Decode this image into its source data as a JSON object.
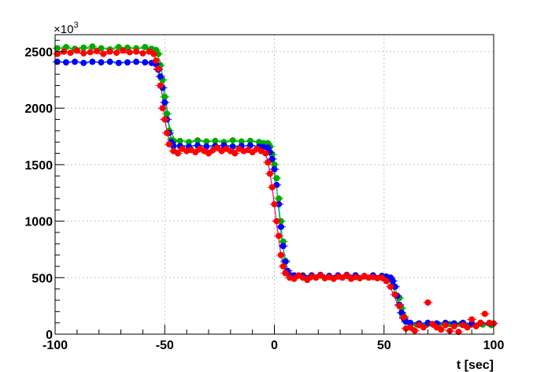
{
  "chart_data": {
    "type": "scatter",
    "title": "",
    "xlabel": "t [sec]",
    "ylabel": "",
    "y_multiplier": "×10",
    "y_multiplier_exp": "3",
    "xlim": [
      -100,
      100
    ],
    "ylim": [
      0,
      2650
    ],
    "x_ticks": [
      -100,
      -50,
      0,
      50,
      100
    ],
    "x_tick_labels": [
      "-100",
      "-50",
      "0",
      "50",
      "100"
    ],
    "y_ticks": [
      0,
      500,
      1000,
      1500,
      2000,
      2500
    ],
    "y_tick_labels": [
      "0",
      "500",
      "1000",
      "1500",
      "2000",
      "2500"
    ],
    "grid": true,
    "series": [
      {
        "color": "#00aa00",
        "fit_color": "#00aa00",
        "points": [
          [
            -99,
            2530
          ],
          [
            -95,
            2540
          ],
          [
            -91,
            2525
          ],
          [
            -87,
            2535
          ],
          [
            -83,
            2545
          ],
          [
            -79,
            2530
          ],
          [
            -75,
            2520
          ],
          [
            -71,
            2540
          ],
          [
            -67,
            2535
          ],
          [
            -63,
            2530
          ],
          [
            -59,
            2540
          ],
          [
            -56,
            2525
          ],
          [
            -54,
            2515
          ],
          [
            -53,
            2480
          ],
          [
            -52,
            2380
          ],
          [
            -51,
            2250
          ],
          [
            -50,
            2100
          ],
          [
            -49,
            1950
          ],
          [
            -48,
            1800
          ],
          [
            -47,
            1720
          ],
          [
            -46,
            1705
          ],
          [
            -43,
            1710
          ],
          [
            -39,
            1700
          ],
          [
            -35,
            1715
          ],
          [
            -31,
            1705
          ],
          [
            -27,
            1710
          ],
          [
            -23,
            1700
          ],
          [
            -19,
            1715
          ],
          [
            -15,
            1705
          ],
          [
            -11,
            1710
          ],
          [
            -7,
            1700
          ],
          [
            -5,
            1690
          ],
          [
            -3,
            1690
          ],
          [
            -2,
            1660
          ],
          [
            -1,
            1590
          ],
          [
            0,
            1500
          ],
          [
            1,
            1380
          ],
          [
            2,
            1200
          ],
          [
            3,
            1000
          ],
          [
            4,
            820
          ],
          [
            5,
            650
          ],
          [
            6,
            560
          ],
          [
            7,
            525
          ],
          [
            9,
            515
          ],
          [
            13,
            520
          ],
          [
            17,
            510
          ],
          [
            21,
            520
          ],
          [
            25,
            515
          ],
          [
            29,
            510
          ],
          [
            33,
            515
          ],
          [
            37,
            520
          ],
          [
            41,
            510
          ],
          [
            45,
            515
          ],
          [
            49,
            515
          ],
          [
            51,
            505
          ],
          [
            53,
            480
          ],
          [
            55,
            420
          ],
          [
            57,
            320
          ],
          [
            58,
            230
          ],
          [
            59,
            160
          ],
          [
            60,
            110
          ],
          [
            62,
            90
          ],
          [
            65,
            85
          ],
          [
            70,
            90
          ],
          [
            75,
            85
          ],
          [
            80,
            90
          ],
          [
            85,
            90
          ],
          [
            90,
            85
          ],
          [
            95,
            85
          ],
          [
            99,
            80
          ]
        ],
        "fit": [
          [
            -100,
            2530
          ],
          [
            -56,
            2530
          ],
          [
            -54,
            2510
          ],
          [
            -52,
            2400
          ],
          [
            -50,
            2150
          ],
          [
            -48,
            1850
          ],
          [
            -46,
            1740
          ],
          [
            -44,
            1710
          ],
          [
            -5,
            1705
          ],
          [
            -3,
            1680
          ],
          [
            -1,
            1550
          ],
          [
            1,
            1300
          ],
          [
            3,
            900
          ],
          [
            5,
            620
          ],
          [
            7,
            530
          ],
          [
            9,
            515
          ],
          [
            50,
            512
          ],
          [
            52,
            490
          ],
          [
            54,
            420
          ],
          [
            56,
            300
          ],
          [
            58,
            170
          ],
          [
            60,
            110
          ],
          [
            63,
            90
          ],
          [
            100,
            85
          ]
        ]
      },
      {
        "color": "#0000ff",
        "fit_color": "#00cccc",
        "points": [
          [
            -99,
            2410
          ],
          [
            -95,
            2405
          ],
          [
            -91,
            2410
          ],
          [
            -87,
            2400
          ],
          [
            -83,
            2410
          ],
          [
            -79,
            2405
          ],
          [
            -75,
            2410
          ],
          [
            -71,
            2400
          ],
          [
            -67,
            2405
          ],
          [
            -63,
            2410
          ],
          [
            -59,
            2405
          ],
          [
            -56,
            2400
          ],
          [
            -54,
            2390
          ],
          [
            -53,
            2340
          ],
          [
            -52,
            2280
          ],
          [
            -51,
            2180
          ],
          [
            -50,
            2050
          ],
          [
            -49,
            1900
          ],
          [
            -48,
            1780
          ],
          [
            -47,
            1700
          ],
          [
            -46,
            1665
          ],
          [
            -43,
            1665
          ],
          [
            -39,
            1660
          ],
          [
            -35,
            1670
          ],
          [
            -31,
            1660
          ],
          [
            -27,
            1665
          ],
          [
            -23,
            1670
          ],
          [
            -19,
            1660
          ],
          [
            -15,
            1665
          ],
          [
            -11,
            1670
          ],
          [
            -7,
            1660
          ],
          [
            -5,
            1655
          ],
          [
            -3,
            1650
          ],
          [
            -2,
            1610
          ],
          [
            -1,
            1550
          ],
          [
            0,
            1460
          ],
          [
            1,
            1320
          ],
          [
            2,
            1150
          ],
          [
            3,
            950
          ],
          [
            4,
            780
          ],
          [
            5,
            640
          ],
          [
            6,
            560
          ],
          [
            7,
            520
          ],
          [
            9,
            520
          ],
          [
            13,
            515
          ],
          [
            17,
            520
          ],
          [
            21,
            525
          ],
          [
            25,
            515
          ],
          [
            29,
            520
          ],
          [
            33,
            525
          ],
          [
            37,
            520
          ],
          [
            41,
            515
          ],
          [
            45,
            520
          ],
          [
            49,
            515
          ],
          [
            51,
            510
          ],
          [
            53,
            500
          ],
          [
            54,
            470
          ],
          [
            55,
            420
          ],
          [
            56,
            340
          ],
          [
            57,
            260
          ],
          [
            58,
            190
          ],
          [
            59,
            140
          ],
          [
            60,
            110
          ],
          [
            62,
            100
          ],
          [
            66,
            95
          ],
          [
            70,
            100
          ],
          [
            74,
            95
          ],
          [
            78,
            100
          ],
          [
            82,
            95
          ],
          [
            86,
            100
          ],
          [
            90,
            95
          ],
          [
            94,
            100
          ],
          [
            98,
            95
          ]
        ],
        "fit": [
          [
            -100,
            2410
          ],
          [
            -55,
            2405
          ],
          [
            -53,
            2360
          ],
          [
            -51,
            2200
          ],
          [
            -49,
            1920
          ],
          [
            -47,
            1720
          ],
          [
            -45,
            1670
          ],
          [
            -4,
            1665
          ],
          [
            -2,
            1620
          ],
          [
            0,
            1470
          ],
          [
            2,
            1150
          ],
          [
            4,
            780
          ],
          [
            6,
            560
          ],
          [
            8,
            520
          ],
          [
            51,
            515
          ],
          [
            53,
            500
          ],
          [
            55,
            420
          ],
          [
            57,
            270
          ],
          [
            59,
            150
          ],
          [
            61,
            105
          ],
          [
            64,
            95
          ],
          [
            100,
            95
          ]
        ]
      },
      {
        "color": "#ff0000",
        "fit_color": "#ff0066",
        "points": [
          [
            -99,
            2480
          ],
          [
            -96,
            2500
          ],
          [
            -93,
            2490
          ],
          [
            -90,
            2510
          ],
          [
            -87,
            2485
          ],
          [
            -84,
            2495
          ],
          [
            -81,
            2505
          ],
          [
            -78,
            2480
          ],
          [
            -75,
            2500
          ],
          [
            -72,
            2490
          ],
          [
            -69,
            2510
          ],
          [
            -66,
            2495
          ],
          [
            -63,
            2500
          ],
          [
            -60,
            2485
          ],
          [
            -57,
            2500
          ],
          [
            -55,
            2480
          ],
          [
            -54,
            2420
          ],
          [
            -53,
            2350
          ],
          [
            -52,
            2200
          ],
          [
            -51,
            2000
          ],
          [
            -50,
            1900
          ],
          [
            -49,
            1780
          ],
          [
            -48,
            1680
          ],
          [
            -46,
            1620
          ],
          [
            -44,
            1600
          ],
          [
            -42,
            1640
          ],
          [
            -40,
            1620
          ],
          [
            -38,
            1630
          ],
          [
            -36,
            1610
          ],
          [
            -34,
            1640
          ],
          [
            -32,
            1620
          ],
          [
            -30,
            1600
          ],
          [
            -28,
            1630
          ],
          [
            -26,
            1650
          ],
          [
            -24,
            1620
          ],
          [
            -22,
            1640
          ],
          [
            -20,
            1620
          ],
          [
            -18,
            1600
          ],
          [
            -16,
            1640
          ],
          [
            -14,
            1620
          ],
          [
            -12,
            1630
          ],
          [
            -10,
            1610
          ],
          [
            -8,
            1640
          ],
          [
            -6,
            1620
          ],
          [
            -4,
            1600
          ],
          [
            -3,
            1520
          ],
          [
            -2,
            1420
          ],
          [
            -1,
            1300
          ],
          [
            0,
            1150
          ],
          [
            1,
            1000
          ],
          [
            2,
            870
          ],
          [
            3,
            700
          ],
          [
            4,
            600
          ],
          [
            5,
            540
          ],
          [
            7,
            500
          ],
          [
            9,
            490
          ],
          [
            11,
            520
          ],
          [
            13,
            500
          ],
          [
            15,
            480
          ],
          [
            17,
            510
          ],
          [
            19,
            500
          ],
          [
            21,
            520
          ],
          [
            23,
            495
          ],
          [
            25,
            505
          ],
          [
            27,
            490
          ],
          [
            29,
            510
          ],
          [
            31,
            500
          ],
          [
            33,
            520
          ],
          [
            35,
            490
          ],
          [
            37,
            505
          ],
          [
            39,
            495
          ],
          [
            41,
            515
          ],
          [
            43,
            500
          ],
          [
            45,
            505
          ],
          [
            47,
            495
          ],
          [
            49,
            500
          ],
          [
            51,
            470
          ],
          [
            53,
            420
          ],
          [
            55,
            350
          ],
          [
            57,
            250
          ],
          [
            59,
            150
          ],
          [
            60,
            50
          ],
          [
            62,
            60
          ],
          [
            64,
            30
          ],
          [
            66,
            80
          ],
          [
            68,
            60
          ],
          [
            70,
            280
          ],
          [
            72,
            90
          ],
          [
            74,
            60
          ],
          [
            76,
            40
          ],
          [
            78,
            80
          ],
          [
            80,
            30
          ],
          [
            82,
            70
          ],
          [
            84,
            20
          ],
          [
            86,
            80
          ],
          [
            88,
            60
          ],
          [
            90,
            130
          ],
          [
            92,
            70
          ],
          [
            94,
            100
          ],
          [
            96,
            180
          ],
          [
            98,
            100
          ],
          [
            100,
            95
          ]
        ],
        "fit": [
          [
            -100,
            2490
          ],
          [
            -56,
            2490
          ],
          [
            -54,
            2440
          ],
          [
            -52,
            2250
          ],
          [
            -50,
            1900
          ],
          [
            -48,
            1700
          ],
          [
            -46,
            1630
          ],
          [
            -5,
            1625
          ],
          [
            -3,
            1540
          ],
          [
            -1,
            1300
          ],
          [
            1,
            980
          ],
          [
            3,
            700
          ],
          [
            5,
            550
          ],
          [
            7,
            505
          ],
          [
            49,
            500
          ],
          [
            51,
            470
          ],
          [
            53,
            410
          ],
          [
            55,
            320
          ],
          [
            57,
            220
          ],
          [
            59,
            130
          ],
          [
            61,
            85
          ],
          [
            64,
            75
          ],
          [
            100,
            80
          ]
        ]
      }
    ]
  }
}
